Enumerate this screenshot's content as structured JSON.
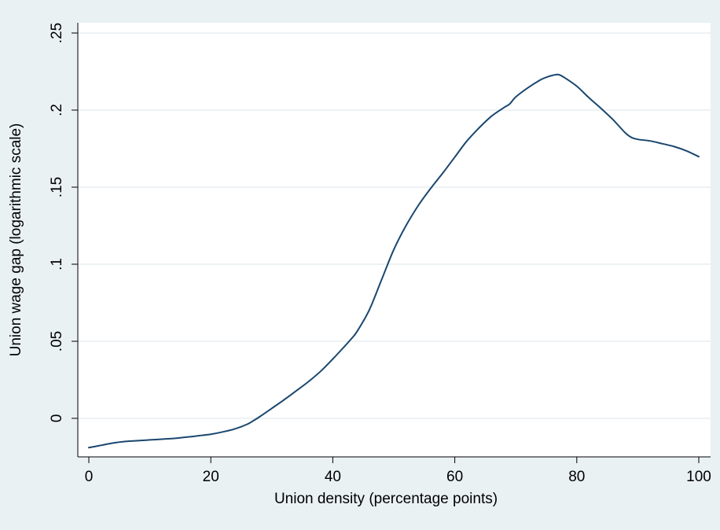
{
  "chart_data": {
    "type": "line",
    "xlabel": "Union density (percentage points)",
    "ylabel": "Union wage gap (logarithmic scale)",
    "xlim": [
      0,
      100
    ],
    "ylim": [
      -0.025,
      0.25
    ],
    "xticks": [
      0,
      20,
      40,
      60,
      80,
      100
    ],
    "xtick_labels": [
      "0",
      "20",
      "40",
      "60",
      "80",
      "100"
    ],
    "yticks": [
      0,
      0.05,
      0.1,
      0.15,
      0.2,
      0.25
    ],
    "ytick_labels": [
      "0",
      ".05",
      ".1",
      ".15",
      ".2",
      ".25"
    ],
    "grid": true,
    "legend": "none",
    "series": [
      {
        "color": "#1a476f",
        "x": [
          0,
          2,
          4,
          6,
          8,
          10,
          12,
          14,
          16,
          18,
          20,
          22,
          24,
          26,
          27,
          28,
          30,
          32,
          34,
          36,
          38,
          40,
          42,
          43,
          44,
          46,
          48,
          50,
          52,
          54,
          56,
          58,
          60,
          62,
          64,
          66,
          68,
          69,
          70,
          72,
          74,
          75,
          76,
          77,
          78,
          80,
          82,
          84,
          86,
          88,
          89,
          90,
          92,
          94,
          96,
          98,
          100
        ],
        "y": [
          -0.019,
          -0.0175,
          -0.016,
          -0.015,
          -0.0145,
          -0.014,
          -0.0135,
          -0.013,
          -0.0122,
          -0.0113,
          -0.0103,
          -0.0088,
          -0.0068,
          -0.0038,
          -0.0015,
          0.001,
          0.0065,
          0.012,
          0.0178,
          0.0238,
          0.0305,
          0.0385,
          0.047,
          0.0515,
          0.0565,
          0.0705,
          0.09,
          0.1095,
          0.125,
          0.138,
          0.149,
          0.159,
          0.1695,
          0.18,
          0.1885,
          0.196,
          0.2015,
          0.204,
          0.2085,
          0.2145,
          0.2195,
          0.2213,
          0.2225,
          0.223,
          0.221,
          0.2155,
          0.208,
          0.201,
          0.1935,
          0.185,
          0.1822,
          0.181,
          0.18,
          0.1782,
          0.1763,
          0.1735,
          0.1698
        ]
      }
    ]
  }
}
